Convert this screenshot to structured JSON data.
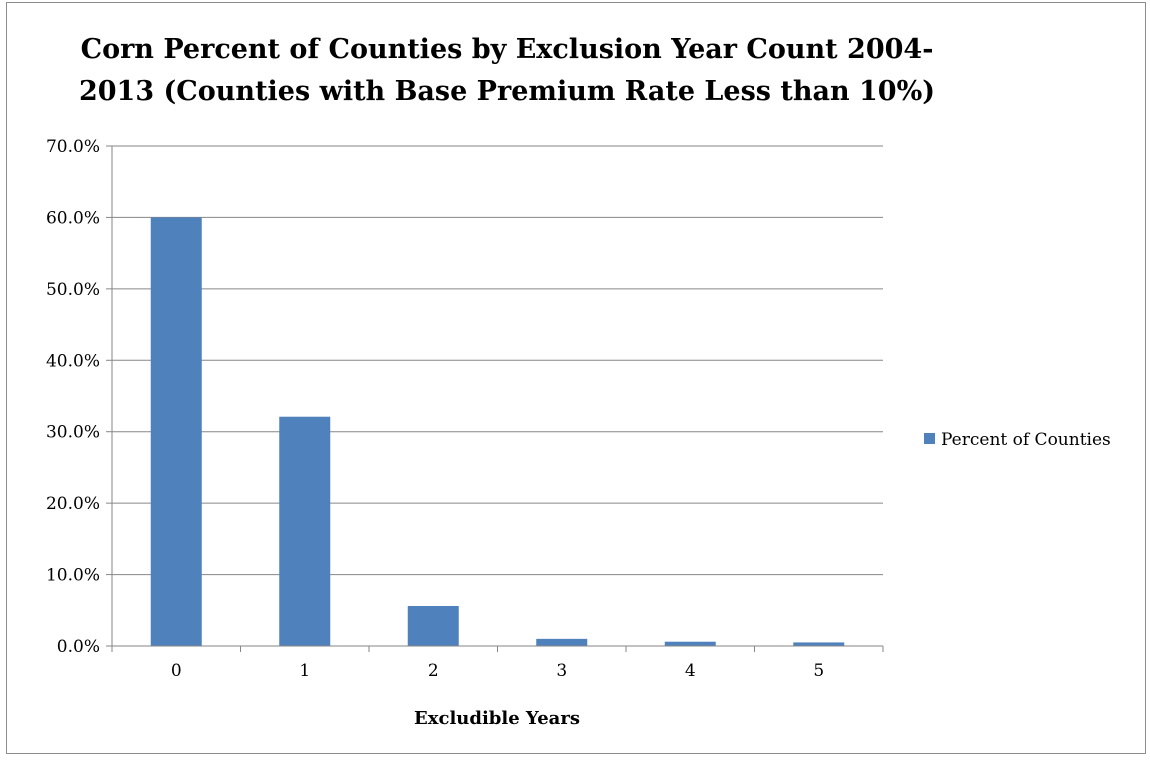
{
  "chart_data": {
    "type": "bar",
    "title_lines": [
      "Corn Percent of Counties by Exclusion Year Count 2004-",
      "2013 (Counties with Base Premium Rate Less than 10%)"
    ],
    "xlabel": "Excludible Years",
    "ylabel": "",
    "categories": [
      "0",
      "1",
      "2",
      "3",
      "4",
      "5"
    ],
    "series": [
      {
        "name": "Percent of Counties",
        "values": [
          60.0,
          32.1,
          5.6,
          1.0,
          0.6,
          0.5
        ],
        "color": "#4f81bd"
      }
    ],
    "ylim": [
      0,
      70
    ],
    "y_ticks": [
      "0.0%",
      "10.0%",
      "20.0%",
      "30.0%",
      "40.0%",
      "50.0%",
      "60.0%",
      "70.0%"
    ],
    "grid": true,
    "legend_position": "right"
  }
}
